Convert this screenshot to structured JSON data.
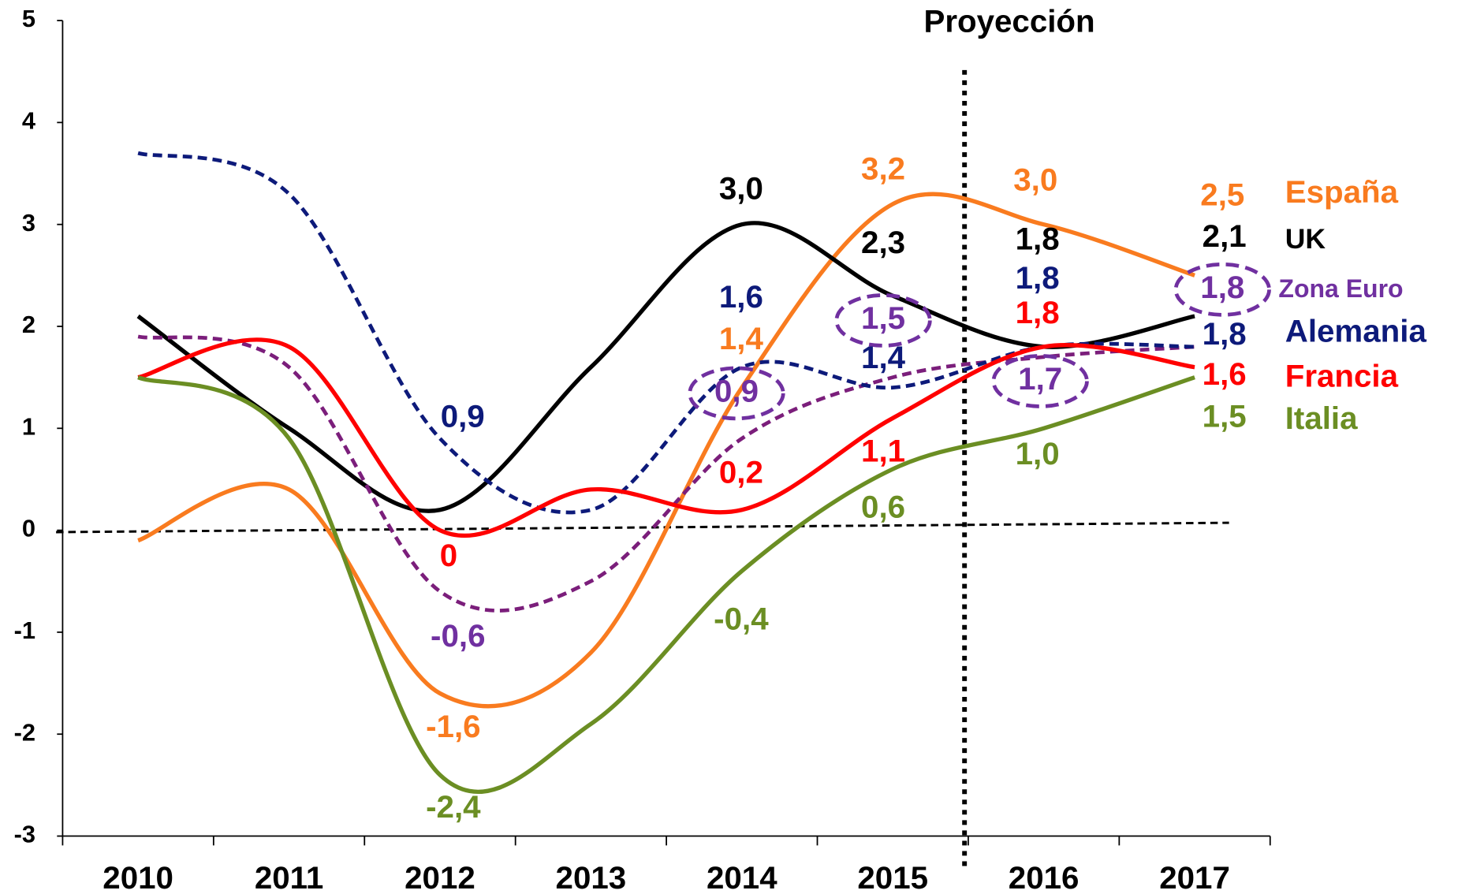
{
  "chart_data": {
    "type": "line",
    "annotation": "Proyección",
    "categories": [
      "2010",
      "2011",
      "2012",
      "2013",
      "2014",
      "2015",
      "2016",
      "2017"
    ],
    "ylim": [
      -3,
      5
    ],
    "yticks": [
      -3,
      -2,
      -1,
      0,
      1,
      2,
      3,
      4,
      5
    ],
    "series": [
      {
        "name": "España",
        "color": "#f97b1f",
        "dash": false,
        "values": [
          -0.1,
          0.4,
          -1.6,
          -1.2,
          1.4,
          3.2,
          3.0,
          2.5
        ],
        "value_labels": [
          null,
          null,
          "-1,6",
          null,
          "1,4",
          "3,2",
          "3,0",
          "2,5"
        ]
      },
      {
        "name": "UK",
        "color": "#000000",
        "dash": false,
        "values": [
          2.1,
          1.0,
          0.2,
          1.6,
          3.0,
          2.3,
          1.8,
          2.1
        ],
        "value_labels": [
          null,
          null,
          null,
          null,
          "3,0",
          "2,3",
          "1,8",
          "2,1"
        ]
      },
      {
        "name": "Zona Euro",
        "color": "#7b1e7b",
        "dash": true,
        "values": [
          1.9,
          1.6,
          -0.6,
          -0.5,
          0.9,
          1.5,
          1.7,
          1.8
        ],
        "value_labels": [
          null,
          null,
          "-0,6",
          null,
          "0,9",
          "1,5",
          "1,7",
          "1,8"
        ]
      },
      {
        "name": "Alemania",
        "color": "#0d1a7a",
        "dash": true,
        "values": [
          3.7,
          3.3,
          0.9,
          0.2,
          1.6,
          1.4,
          1.8,
          1.8
        ],
        "value_labels": [
          null,
          null,
          "0,9",
          null,
          "1,6",
          "1,4",
          "1,8",
          "1,8"
        ]
      },
      {
        "name": "Francia",
        "color": "#ff0000",
        "dash": false,
        "values": [
          1.5,
          1.8,
          0,
          0.4,
          0.2,
          1.1,
          1.8,
          1.6
        ],
        "value_labels": [
          null,
          null,
          "0",
          null,
          "0,2",
          "1,1",
          "1,8",
          "1,6"
        ]
      },
      {
        "name": "Italia",
        "color": "#6b8e23",
        "dash": false,
        "values": [
          1.5,
          0.9,
          -2.4,
          -1.9,
          -0.4,
          0.6,
          1.0,
          1.5
        ],
        "value_labels": [
          null,
          null,
          "-2,4",
          null,
          "-0,4",
          "0,6",
          "1,0",
          "1,5"
        ]
      }
    ]
  }
}
